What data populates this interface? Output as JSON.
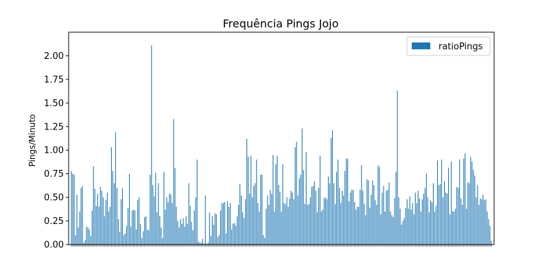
{
  "chart_data": {
    "type": "bar",
    "title": "Frequência Pings Jojo",
    "xlabel": "",
    "ylabel": "Pings/Minuto",
    "ylim": [
      0,
      2.25
    ],
    "yticks": [
      0.0,
      0.25,
      0.5,
      0.75,
      1.0,
      1.25,
      1.5,
      1.75,
      2.0
    ],
    "ytick_labels": [
      "0.00",
      "0.25",
      "0.50",
      "0.75",
      "1.00",
      "1.25",
      "1.50",
      "1.75",
      "2.00"
    ],
    "legend": {
      "position": "top-right"
    },
    "grid": false,
    "series": [
      {
        "name": "ratioPings",
        "color": "#1f77b4",
        "values": [
          0.78,
          0.75,
          0.74,
          0.1,
          0.53,
          0.18,
          0.35,
          0.6,
          0.62,
          0.02,
          0.05,
          0.19,
          0.18,
          0.16,
          0.09,
          0.36,
          0.83,
          0.59,
          0.41,
          0.54,
          0.4,
          0.61,
          0.57,
          0.5,
          0.3,
          0.47,
          0.55,
          0.35,
          0.4,
          1.03,
          0.78,
          0.65,
          1.19,
          0.6,
          0.27,
          0.13,
          0.48,
          0.6,
          0.1,
          0.12,
          0.2,
          0.39,
          0.75,
          0.19,
          0.36,
          0.37,
          0.36,
          0.16,
          0.47,
          0.5,
          0.22,
          0.07,
          0.14,
          0.29,
          0.3,
          0.16,
          0.15,
          0.74,
          2.11,
          0.63,
          0.51,
          0.76,
          0.34,
          0.65,
          0.3,
          0.18,
          0.07,
          0.77,
          0.37,
          0.5,
          0.45,
          0.54,
          0.53,
          0.44,
          1.33,
          0.81,
          0.4,
          0.25,
          0.18,
          0.27,
          0.22,
          0.28,
          0.19,
          0.3,
          0.22,
          0.65,
          0.41,
          0.24,
          0.15,
          0.36,
          0.5,
          0.9,
          0.03,
          0.02,
          0.02,
          0.06,
          0.01,
          0.52,
          0.01,
          0.02,
          0.34,
          0.09,
          0.3,
          0.21,
          0.33,
          0.32,
          0.08,
          0.1,
          0.36,
          0.44,
          0.44,
          0.45,
          0.12,
          0.46,
          0.4,
          0.44,
          0.16,
          0.22,
          0.23,
          0.2,
          0.3,
          0.42,
          0.64,
          0.52,
          0.34,
          0.28,
          0.48,
          1.12,
          0.93,
          0.54,
          0.94,
          0.5,
          0.62,
          0.65,
          0.9,
          0.44,
          0.35,
          0.74,
          0.74,
          0.1,
          0.07,
          0.38,
          0.52,
          0.42,
          0.58,
          0.54,
          0.95,
          0.35,
          0.85,
          0.94,
          0.63,
          0.56,
          0.35,
          0.85,
          0.44,
          0.43,
          0.5,
          0.4,
          0.49,
          0.57,
          0.55,
          0.48,
          1.03,
          1.09,
          0.52,
          0.7,
          0.74,
          1.23,
          0.79,
          0.43,
          0.98,
          0.42,
          0.43,
          0.5,
          0.61,
          0.62,
          0.67,
          0.57,
          0.34,
          0.6,
          0.94,
          0.35,
          0.37,
          0.49,
          0.5,
          0.48,
          0.72,
          0.65,
          1.13,
          1.21,
          0.65,
          0.43,
          0.77,
          0.9,
          0.6,
          0.44,
          0.57,
          0.52,
          0.78,
          0.91,
          0.91,
          0.46,
          0.55,
          0.58,
          0.58,
          0.45,
          0.37,
          0.4,
          0.4,
          0.58,
          0.84,
          0.57,
          0.43,
          0.31,
          0.69,
          0.68,
          0.39,
          0.53,
          0.68,
          0.63,
          0.47,
          0.42,
          0.84,
          0.82,
          0.32,
          0.55,
          0.62,
          0.35,
          0.57,
          0.58,
          0.66,
          0.35,
          0.31,
          0.29,
          0.49,
          0.77,
          1.63,
          0.5,
          0.38,
          0.21,
          0.25,
          0.28,
          0.39,
          0.48,
          0.38,
          0.51,
          0.37,
          0.44,
          0.32,
          0.55,
          0.44,
          0.57,
          0.49,
          0.35,
          0.48,
          0.54,
          0.6,
          0.75,
          0.5,
          0.34,
          0.47,
          0.45,
          0.65,
          0.35,
          0.41,
          0.89,
          0.63,
          0.64,
          0.9,
          0.5,
          0.67,
          0.55,
          0.54,
          0.81,
          0.32,
          0.88,
          0.35,
          0.35,
          0.38,
          0.61,
          0.6,
          0.9,
          0.49,
          0.42,
          0.91,
          0.97,
          0.38,
          0.66,
          0.65,
          0.93,
          0.88,
          0.79,
          0.73,
          0.5,
          0.63,
          0.42,
          0.49,
          0.48,
          0.53,
          0.47,
          0.48,
          0.35,
          0.27,
          0.2,
          0.04
        ]
      }
    ]
  }
}
